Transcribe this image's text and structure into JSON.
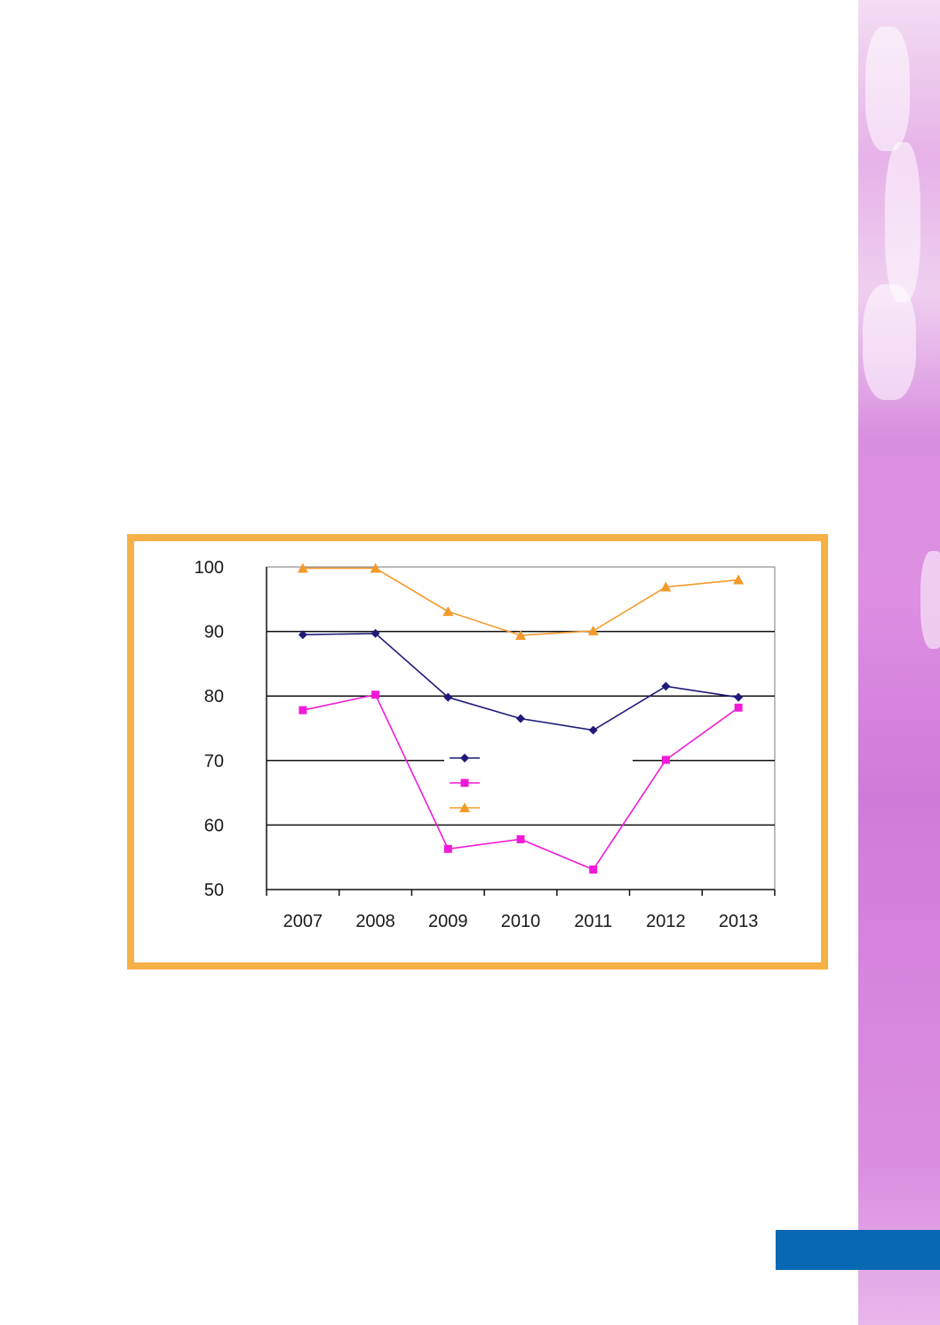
{
  "chart_data": {
    "type": "line",
    "categories": [
      "2007",
      "2008",
      "2009",
      "2010",
      "2011",
      "2012",
      "2013"
    ],
    "ylim": [
      50,
      100
    ],
    "yticks": [
      100,
      90,
      80,
      70,
      60,
      50
    ],
    "grid": true,
    "legend_position": "center",
    "series": [
      {
        "values": [
          89.5,
          89.7,
          79.8,
          76.5,
          74.7,
          81.5,
          79.8
        ],
        "color": "#1f1a7a",
        "marker": "diamond"
      },
      {
        "values": [
          77.8,
          80.2,
          56.3,
          57.8,
          53.1,
          70.1,
          78.2
        ],
        "color": "#f01bd6",
        "marker": "square"
      },
      {
        "values": [
          99.8,
          99.8,
          93.1,
          89.4,
          90.1,
          96.9,
          98.0
        ],
        "color": "#f39a2b",
        "marker": "triangle"
      }
    ]
  },
  "colors": {
    "frame": "#f6b146",
    "blue_tab": "#0868b4",
    "side_strip": "#d98fdf"
  }
}
